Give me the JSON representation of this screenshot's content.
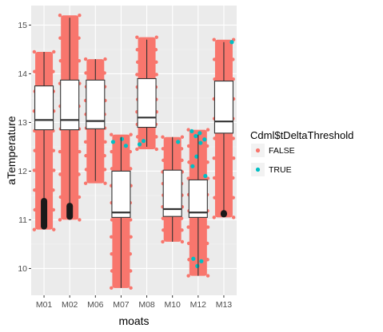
{
  "chart_data": {
    "type": "box",
    "title": "",
    "xlabel": "moats",
    "ylabel": "aTemperature",
    "ylim": [
      9.45,
      15.4
    ],
    "y_ticks": [
      10,
      11,
      12,
      13,
      14,
      15
    ],
    "y_tick_labels": [
      "10",
      "11",
      "12",
      "13",
      "14",
      "15"
    ],
    "categories": [
      "M01",
      "M02",
      "M06",
      "M07",
      "M08",
      "M10",
      "M12",
      "M13"
    ],
    "overlay": "jittered points coloured by series, box plots drawn on top",
    "boxes": [
      {
        "category": "M01",
        "whisker_low": 10.85,
        "q1": 12.85,
        "median": 13.05,
        "q3": 13.75,
        "whisker_high": 14.45,
        "outlier_low": 10.8,
        "outlier_high": 11.45
      },
      {
        "category": "M02",
        "whisker_low": 11.0,
        "q1": 12.85,
        "median": 13.05,
        "q3": 13.87,
        "whisker_high": 15.15,
        "outlier_low": 11.0,
        "outlier_high": 11.35
      },
      {
        "category": "M06",
        "whisker_low": 11.8,
        "q1": 12.87,
        "median": 13.03,
        "q3": 13.87,
        "whisker_high": 14.3,
        "outlier_low": null,
        "outlier_high": null
      },
      {
        "category": "M07",
        "whisker_low": 9.6,
        "q1": 11.05,
        "median": 11.15,
        "q3": 12.0,
        "whisker_high": 12.7,
        "outlier_low": null,
        "outlier_high": null
      },
      {
        "category": "M08",
        "whisker_low": 12.5,
        "q1": 12.9,
        "median": 13.1,
        "q3": 13.9,
        "whisker_high": 14.7,
        "outlier_low": null,
        "outlier_high": null
      },
      {
        "category": "M10",
        "whisker_low": 10.55,
        "q1": 11.07,
        "median": 11.22,
        "q3": 12.02,
        "whisker_high": 12.7,
        "outlier_low": null,
        "outlier_high": null
      },
      {
        "category": "M12",
        "whisker_low": 9.85,
        "q1": 11.05,
        "median": 11.15,
        "q3": 11.82,
        "whisker_high": 12.75,
        "outlier_low": null,
        "outlier_high": null
      },
      {
        "category": "M13",
        "whisker_low": 11.1,
        "q1": 12.78,
        "median": 13.02,
        "q3": 13.85,
        "whisker_high": 14.65,
        "outlier_low": 11.05,
        "outlier_high": 11.2
      }
    ],
    "point_ranges": [
      {
        "category": "M01",
        "min": 10.8,
        "max": 14.45
      },
      {
        "category": "M02",
        "min": 11.0,
        "max": 15.2
      },
      {
        "category": "M06",
        "min": 11.75,
        "max": 14.3
      },
      {
        "category": "M07",
        "min": 9.6,
        "max": 12.75
      },
      {
        "category": "M08",
        "min": 12.45,
        "max": 14.75
      },
      {
        "category": "M10",
        "min": 10.55,
        "max": 12.7
      },
      {
        "category": "M12",
        "min": 9.85,
        "max": 12.85
      },
      {
        "category": "M13",
        "min": 11.05,
        "max": 14.7
      }
    ],
    "series": [
      {
        "name": "FALSE",
        "color": "#F8766D"
      },
      {
        "name": "TRUE",
        "color": "#00BFC4"
      }
    ],
    "true_points": [
      {
        "category": "M07",
        "y": 12.6
      },
      {
        "category": "M07",
        "y": 12.52
      },
      {
        "category": "M07",
        "y": 12.66
      },
      {
        "category": "M08",
        "y": 12.62
      },
      {
        "category": "M08",
        "y": 12.55
      },
      {
        "category": "M10",
        "y": 12.6
      },
      {
        "category": "M12",
        "y": 12.78
      },
      {
        "category": "M12",
        "y": 12.72
      },
      {
        "category": "M12",
        "y": 12.82
      },
      {
        "category": "M12",
        "y": 12.65
      },
      {
        "category": "M12",
        "y": 12.58
      },
      {
        "category": "M12",
        "y": 12.3
      },
      {
        "category": "M12",
        "y": 12.1
      },
      {
        "category": "M12",
        "y": 11.9
      },
      {
        "category": "M12",
        "y": 10.15
      },
      {
        "category": "M12",
        "y": 10.05
      },
      {
        "category": "M12",
        "y": 10.2
      },
      {
        "category": "M13",
        "y": 14.65
      }
    ],
    "legend": {
      "title": "Cdml$tDeltaThreshold",
      "position": "right",
      "entries": [
        "FALSE",
        "TRUE"
      ]
    },
    "panel_background": "#EBEBEB",
    "grid": true
  }
}
